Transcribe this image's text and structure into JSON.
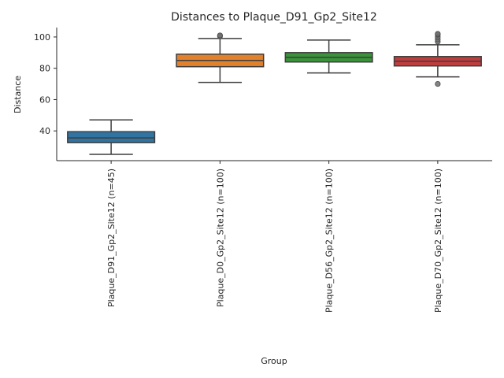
{
  "chart_data": {
    "type": "box",
    "title": "Distances to Plaque_D91_Gp2_Site12",
    "xlabel": "Group",
    "ylabel": "Distance",
    "ylim": [
      21,
      106
    ],
    "yticks": [
      40,
      60,
      80,
      100
    ],
    "grid": false,
    "groups": [
      {
        "label": "Plaque_D91_Gp2_Site12 (n=45)",
        "color": "#3274a1",
        "whisker_low": 25,
        "q1": 32.5,
        "median": 35.5,
        "q3": 39.5,
        "whisker_high": 47,
        "outliers": []
      },
      {
        "label": "Plaque_D0_Gp2_Site12 (n=100)",
        "color": "#e1812c",
        "whisker_low": 71,
        "q1": 81,
        "median": 85,
        "q3": 89,
        "whisker_high": 99,
        "outliers": [
          100.5,
          101
        ]
      },
      {
        "label": "Plaque_D56_Gp2_Site12 (n=100)",
        "color": "#3a923a",
        "whisker_low": 77,
        "q1": 84,
        "median": 87,
        "q3": 90,
        "whisker_high": 98,
        "outliers": []
      },
      {
        "label": "Plaque_D70_Gp2_Site12 (n=100)",
        "color": "#c03d3e",
        "whisker_low": 74.5,
        "q1": 81.5,
        "median": 84.5,
        "q3": 87.5,
        "whisker_high": 95,
        "outliers": [
          70,
          97,
          98.5,
          100,
          101.5,
          102
        ]
      }
    ]
  }
}
